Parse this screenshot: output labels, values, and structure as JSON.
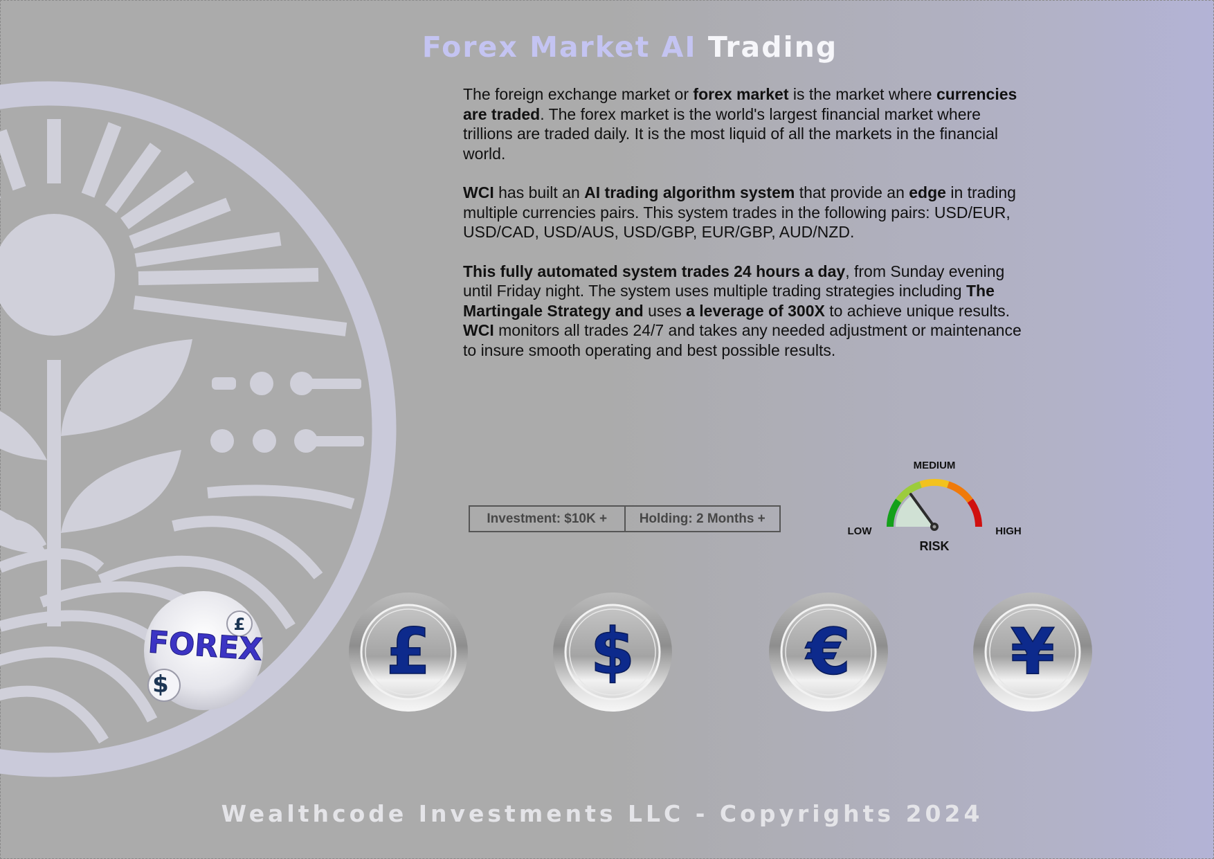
{
  "title": {
    "part1": "Forex Market AI ",
    "part2": "Trading"
  },
  "body": {
    "p1": {
      "a": "The foreign exchange market or ",
      "b": "forex market",
      "c": " is the market where ",
      "d": "currencies are traded",
      "e": ". The forex market is the world's largest financial market where trillions are traded daily. It is the most liquid of all the markets in the financial world."
    },
    "p2": {
      "a": "WCI",
      "b": " has built an ",
      "c": "AI trading algorithm system",
      "d": " that provide an ",
      "e": "edge",
      "f": " in trading multiple currencies pairs. This system trades in the following pairs: USD/EUR, USD/CAD, USD/AUS, USD/GBP, EUR/GBP, AUD/NZD."
    },
    "p3": {
      "a": "This fully automated system",
      "b": " ",
      "c": "trades 24 hours a day",
      "d": ", from Sunday evening until Friday night. The system uses multiple trading strategies including ",
      "e": "The Martingale Strategy and",
      "f": " uses ",
      "g": "a leverage of 300X",
      "h": " to achieve unique results. ",
      "i": "WCI",
      "j": " monitors all trades 24/7 and takes any needed adjustment or maintenance to insure smooth operating and best possible results."
    }
  },
  "info": {
    "investment": "Investment: $10K +",
    "holding": "Holding: 2 Months +"
  },
  "risk_gauge": {
    "medium_label": "MEDIUM",
    "low_label": "LOW",
    "high_label": "HIGH",
    "caption": "RISK",
    "needle_fraction": 0.3,
    "colors": [
      "#14a01a",
      "#9ccc3c",
      "#f2c21e",
      "#f07a0a",
      "#d01010"
    ]
  },
  "emblem": {
    "forex_badge_text": "FOREX",
    "badge_symbols": [
      "£",
      "$"
    ]
  },
  "coins": [
    {
      "symbol": "£",
      "icon": "pound-icon"
    },
    {
      "symbol": "$",
      "icon": "dollar-icon"
    },
    {
      "symbol": "€",
      "icon": "euro-icon"
    },
    {
      "symbol": "¥",
      "icon": "yen-icon"
    }
  ],
  "footer": "Wealthcode Investments LLC - Copyrights 2024"
}
